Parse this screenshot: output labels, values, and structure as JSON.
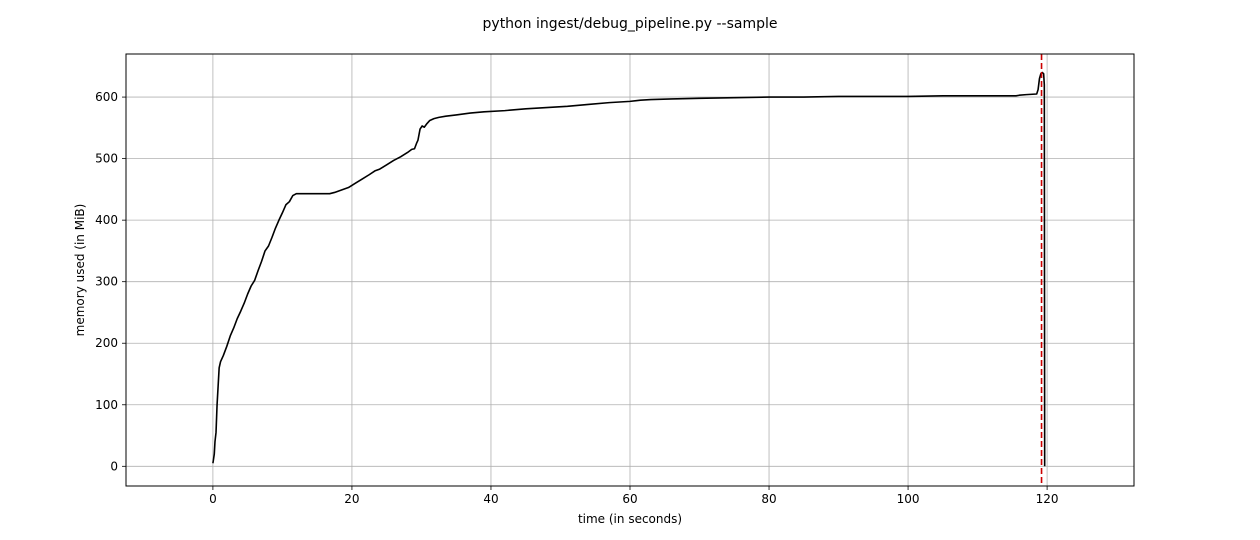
{
  "chart_data": {
    "type": "line",
    "title": "python ingest/debug_pipeline.py --sample",
    "xlabel": "time (in seconds)",
    "ylabel": "memory used (in MiB)",
    "xlim": [
      -12.5,
      132.5
    ],
    "ylim": [
      -32,
      670
    ],
    "xticks": [
      0,
      20,
      40,
      60,
      80,
      100,
      120
    ],
    "yticks": [
      0,
      100,
      200,
      300,
      400,
      500,
      600
    ],
    "grid": true,
    "series": [
      {
        "color": "#000000",
        "x": [
          0.0,
          0.2,
          0.3,
          0.45,
          0.6,
          0.75,
          0.9,
          1.1,
          1.5,
          2.0,
          2.5,
          3.0,
          3.5,
          4.0,
          4.5,
          5.0,
          5.5,
          6.0,
          6.5,
          7.0,
          7.5,
          8.0,
          8.5,
          9.0,
          9.5,
          10.0,
          10.5,
          11.0,
          11.5,
          12.0,
          12.4,
          12.7,
          13.0,
          14.0,
          15.0,
          16.0,
          16.8,
          17.5,
          18.5,
          19.5,
          20.5,
          21.5,
          22.5,
          23.3,
          24.0,
          25.0,
          26.0,
          27.0,
          28.0,
          28.6,
          29.0,
          29.3,
          29.5,
          29.8,
          30.1,
          30.4,
          30.8,
          31.2,
          31.8,
          32.5,
          33.5,
          35,
          37,
          39,
          42,
          45,
          48,
          51,
          54,
          57,
          60,
          61.5,
          63,
          66,
          70,
          75,
          80,
          85,
          90,
          95,
          100,
          105,
          110,
          115.5,
          116,
          117,
          118.5,
          118.7,
          118.9,
          119.1,
          119.3,
          119.5,
          119.6,
          119.65
        ],
        "y": [
          5,
          20,
          40,
          55,
          100,
          130,
          160,
          170,
          180,
          195,
          212,
          225,
          240,
          252,
          265,
          280,
          293,
          302,
          318,
          333,
          350,
          358,
          372,
          387,
          400,
          412,
          425,
          430,
          440,
          443,
          443,
          443,
          443,
          443,
          443,
          443,
          443,
          445,
          449,
          453,
          460,
          467,
          474,
          480,
          483,
          490,
          497,
          503,
          510,
          515,
          516,
          525,
          530,
          548,
          553,
          551,
          557,
          562,
          565,
          567,
          569,
          571,
          574,
          576,
          578,
          581,
          583,
          585,
          588,
          591,
          593,
          595,
          596,
          597,
          598,
          599,
          600,
          600,
          601,
          601,
          601,
          602,
          602,
          602,
          603,
          604,
          605,
          612,
          630,
          638,
          640,
          638,
          620,
          0
        ]
      }
    ],
    "vlines": [
      {
        "x": 119.2,
        "color": "#cc0000",
        "style": "dashed"
      }
    ]
  }
}
